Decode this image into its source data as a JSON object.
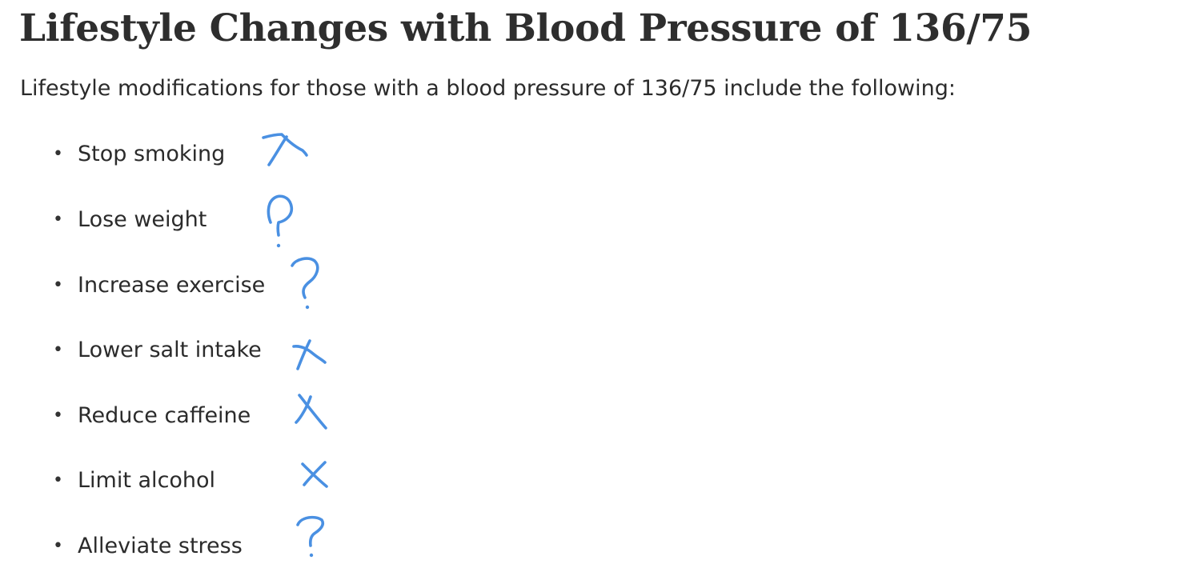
{
  "article": {
    "title": "Lifestyle Changes with Blood Pressure of 136/75",
    "intro": "Lifestyle modifications for those with a blood pressure of 136/75 include the following:",
    "bullet_glyph": "•",
    "items": [
      {
        "label": "Stop smoking",
        "mark": "x-mark-icon"
      },
      {
        "label": "Lose weight",
        "mark": "question-mark-icon"
      },
      {
        "label": "Increase exercise",
        "mark": "question-mark-icon"
      },
      {
        "label": "Lower salt intake",
        "mark": "x-mark-icon"
      },
      {
        "label": "Reduce caffeine",
        "mark": "x-mark-icon"
      },
      {
        "label": "Limit alcohol",
        "mark": "x-mark-icon"
      },
      {
        "label": "Alleviate stress",
        "mark": "question-mark-icon"
      }
    ]
  },
  "colors": {
    "text": "#2b2b2b",
    "annotation_ink": "#4a90e2",
    "background": "#ffffff"
  }
}
